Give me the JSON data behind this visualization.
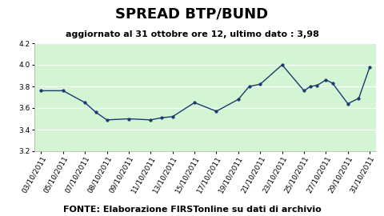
{
  "title": "SPREAD BTP/BUND",
  "subtitle": "aggiornato al 31 ottobre ore 12, ultimo dato : 3,98",
  "footer": "FONTE: Elaborazione FIRSTonline su dati di archivio",
  "x_labels": [
    "03/10/2011",
    "05/10/2011",
    "07/10/2011",
    "08/10/2011",
    "09/10/2011",
    "11/10/2011",
    "13/10/2011",
    "15/10/2011",
    "17/10/2011",
    "19/10/2011",
    "21/10/2011",
    "23/10/2011",
    "25/10/2011",
    "27/10/2011",
    "29/10/2011",
    "31/10/2011"
  ],
  "y_values": [
    3.76,
    3.76,
    3.65,
    3.56,
    3.49,
    3.5,
    3.49,
    3.51,
    3.52,
    3.65,
    3.57,
    3.68,
    3.8,
    3.82,
    4.0,
    3.76,
    3.8,
    3.81,
    3.86,
    3.83,
    3.64,
    3.69,
    3.98
  ],
  "ylim": [
    3.2,
    4.2
  ],
  "yticks": [
    3.2,
    3.4,
    3.6,
    3.8,
    4.0,
    4.2
  ],
  "line_color": "#1a3a6e",
  "marker_color": "#1a3a6e",
  "bg_color": "#d4f5d4",
  "outer_bg": "#ffffff",
  "title_fontsize": 13,
  "subtitle_fontsize": 8,
  "footer_fontsize": 8,
  "tick_fontsize": 6.5
}
